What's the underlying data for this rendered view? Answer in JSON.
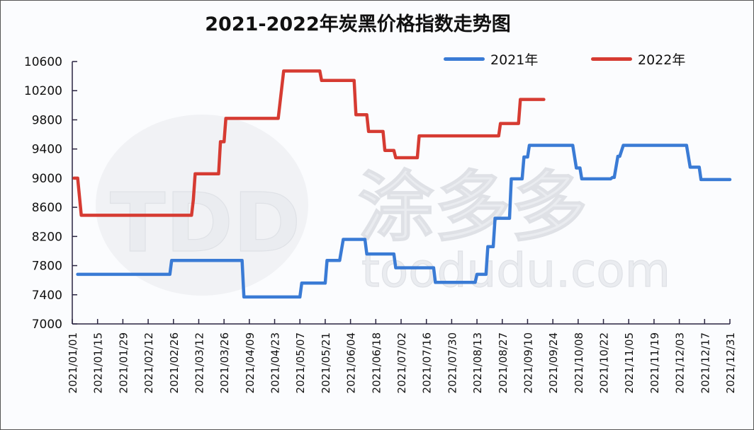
{
  "title": "2021-2022年炭黑价格指数走势图",
  "legend": [
    {
      "label": "2021年",
      "color": "#3a7bd5"
    },
    {
      "label": "2022年",
      "color": "#d63b32"
    }
  ],
  "watermark": {
    "logo": "TDD",
    "brand": "涂多多",
    "url": "toodudu.com"
  },
  "chart_data": {
    "type": "line",
    "title": "2021-2022年炭黑价格指数走势图",
    "xlabel": "",
    "ylabel": "",
    "ylim": [
      7000,
      10600
    ],
    "yticks": [
      7000,
      7400,
      7800,
      8200,
      8600,
      9000,
      9400,
      9800,
      10200,
      10600
    ],
    "xticks": [
      "2021/01/01",
      "2021/01/15",
      "2021/01/29",
      "2021/02/12",
      "2021/02/26",
      "2021/03/12",
      "2021/03/26",
      "2021/04/09",
      "2021/04/23",
      "2021/05/07",
      "2021/05/21",
      "2021/06/04",
      "2021/06/18",
      "2021/07/02",
      "2021/07/16",
      "2021/07/30",
      "2021/08/13",
      "2021/08/27",
      "2021/09/10",
      "2021/09/24",
      "2021/10/08",
      "2021/10/22",
      "2021/11/05",
      "2021/11/19",
      "2021/12/03",
      "2021/12/17",
      "2021/12/31"
    ],
    "x_day_range": [
      0,
      364
    ],
    "grid": false,
    "legend_position": "top-right",
    "series": [
      {
        "name": "2021年",
        "color": "#3a7bd5",
        "points": [
          [
            3,
            7680
          ],
          [
            54,
            7680
          ],
          [
            55,
            7870
          ],
          [
            94,
            7870
          ],
          [
            95,
            7370
          ],
          [
            126,
            7370
          ],
          [
            127,
            7560
          ],
          [
            140,
            7560
          ],
          [
            141,
            7870
          ],
          [
            148,
            7870
          ],
          [
            150,
            8160
          ],
          [
            162,
            8160
          ],
          [
            163,
            7960
          ],
          [
            178,
            7960
          ],
          [
            179,
            7770
          ],
          [
            200,
            7770
          ],
          [
            201,
            7570
          ],
          [
            223,
            7570
          ],
          [
            224,
            7680
          ],
          [
            229,
            7680
          ],
          [
            230,
            8060
          ],
          [
            233,
            8060
          ],
          [
            234,
            8450
          ],
          [
            242,
            8450
          ],
          [
            243,
            8990
          ],
          [
            249,
            8990
          ],
          [
            250,
            9290
          ],
          [
            252,
            9290
          ],
          [
            253,
            9450
          ],
          [
            277,
            9450
          ],
          [
            279,
            9140
          ],
          [
            281,
            9140
          ],
          [
            282,
            8990
          ],
          [
            298,
            8990
          ],
          [
            299,
            9010
          ],
          [
            300,
            9010
          ],
          [
            302,
            9300
          ],
          [
            303,
            9300
          ],
          [
            305,
            9450
          ],
          [
            340,
            9450
          ],
          [
            342,
            9150
          ],
          [
            347,
            9150
          ],
          [
            348,
            8980
          ],
          [
            364,
            8980
          ]
        ]
      },
      {
        "name": "2022年",
        "color": "#d63b32",
        "points": [
          [
            1,
            9000
          ],
          [
            3,
            9000
          ],
          [
            5,
            8490
          ],
          [
            66,
            8490
          ],
          [
            67,
            8700
          ],
          [
            68,
            9060
          ],
          [
            81,
            9060
          ],
          [
            82,
            9500
          ],
          [
            84,
            9500
          ],
          [
            85,
            9820
          ],
          [
            114,
            9820
          ],
          [
            117,
            10470
          ],
          [
            137,
            10470
          ],
          [
            138,
            10340
          ],
          [
            156,
            10340
          ],
          [
            157,
            9870
          ],
          [
            163,
            9870
          ],
          [
            164,
            9640
          ],
          [
            172,
            9640
          ],
          [
            173,
            9380
          ],
          [
            178,
            9380
          ],
          [
            179,
            9280
          ],
          [
            191,
            9280
          ],
          [
            192,
            9580
          ],
          [
            236,
            9580
          ],
          [
            237,
            9750
          ],
          [
            247,
            9750
          ],
          [
            248,
            10080
          ],
          [
            261,
            10080
          ]
        ]
      }
    ]
  }
}
